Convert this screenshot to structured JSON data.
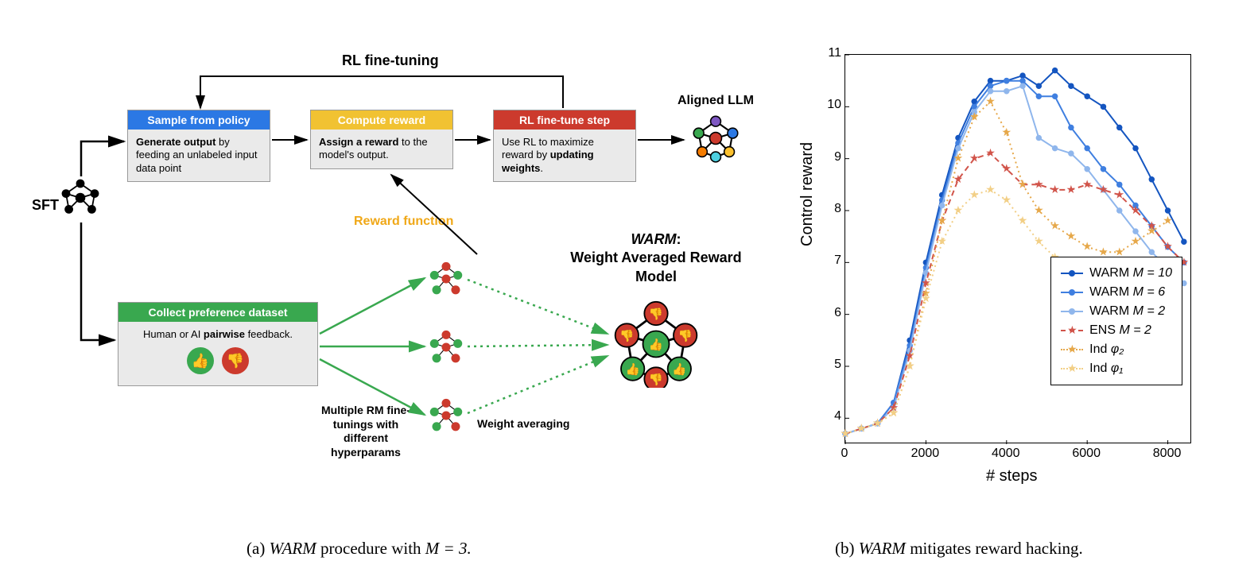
{
  "figure": {
    "caption_a_prefix": "(a) ",
    "caption_a_italic": "WARM",
    "caption_a_rest": " procedure with ",
    "caption_a_math": "M = 3.",
    "caption_b_prefix": "(b) ",
    "caption_b_italic": "WARM",
    "caption_b_rest": " mitigates reward hacking."
  },
  "diagram": {
    "rl_finetuning_label": "RL fine-tuning",
    "sft_label": "SFT",
    "aligned_llm_label": "Aligned LLM",
    "reward_function_label": "Reward function",
    "reward_function_color": "#f0a818",
    "multi_rm_label": "Multiple RM fine-tunings with different hyperparams",
    "weight_averaging_label": "Weight averaging",
    "warm_title_italic": "WARM",
    "warm_title_rest": ":\nWeight Averaged Reward Model",
    "colors": {
      "sample_head": "#2b78e4",
      "reward_head": "#f1c232",
      "step_head": "#cc3a2d",
      "pref_head": "#39a84f",
      "box_body_bg": "#eaeaea",
      "thumb_up": "#39a84f",
      "thumb_down": "#cc3a2d",
      "arrow_green": "#39a84f",
      "arrow_black": "#000000"
    },
    "boxes": {
      "sample": {
        "title": "Sample from policy",
        "body_bold": "Generate output",
        "body_rest": " by feeding an unlabeled input data point"
      },
      "reward": {
        "title": "Compute reward",
        "body_bold": "Assign a reward",
        "body_rest": " to the model's output."
      },
      "step": {
        "title": "RL fine-tune step",
        "body_pre": "Use RL to maximize reward by ",
        "body_bold": "updating weights",
        "body_post": "."
      },
      "pref": {
        "title": "Collect preference dataset",
        "body_pre": "Human or AI ",
        "body_bold": "pairwise",
        "body_post": " feedback."
      }
    }
  },
  "chart": {
    "type": "line",
    "xlabel": "# steps",
    "ylabel": "Control reward",
    "xlim": [
      0,
      8600
    ],
    "ylim": [
      3.5,
      11
    ],
    "xtick_positions": [
      0,
      2000,
      4000,
      6000,
      8000
    ],
    "xtick_labels": [
      "0",
      "2000",
      "4000",
      "6000",
      "8000"
    ],
    "ytick_positions": [
      4,
      5,
      6,
      7,
      8,
      9,
      10,
      11
    ],
    "ytick_labels": [
      "4",
      "5",
      "6",
      "7",
      "8",
      "9",
      "10",
      "11"
    ],
    "background_color": "#ffffff",
    "axis_color": "#000000",
    "label_fontsize": 20,
    "tick_fontsize": 16,
    "legend_fontsize": 16,
    "series": [
      {
        "name": "WARM M = 10",
        "label_prefix": "WARM ",
        "label_math": "M = 10",
        "color": "#1455c0",
        "linestyle": "solid",
        "linewidth": 2,
        "marker": "circle",
        "marker_size": 6,
        "x": [
          0,
          400,
          800,
          1200,
          1600,
          2000,
          2400,
          2800,
          3200,
          3600,
          4000,
          4400,
          4800,
          5200,
          5600,
          6000,
          6400,
          6800,
          7200,
          7600,
          8000,
          8400
        ],
        "y": [
          3.7,
          3.8,
          3.9,
          4.3,
          5.5,
          7.0,
          8.3,
          9.4,
          10.1,
          10.5,
          10.5,
          10.6,
          10.4,
          10.7,
          10.4,
          10.2,
          10.0,
          9.6,
          9.2,
          8.6,
          8.0,
          7.4
        ]
      },
      {
        "name": "WARM M = 6",
        "label_prefix": "WARM ",
        "label_math": "M = 6",
        "color": "#3f7fe0",
        "linestyle": "solid",
        "linewidth": 2,
        "marker": "circle",
        "marker_size": 6,
        "x": [
          0,
          400,
          800,
          1200,
          1600,
          2000,
          2400,
          2800,
          3200,
          3600,
          4000,
          4400,
          4800,
          5200,
          5600,
          6000,
          6400,
          6800,
          7200,
          7600,
          8000,
          8400
        ],
        "y": [
          3.7,
          3.8,
          3.9,
          4.3,
          5.4,
          6.9,
          8.2,
          9.3,
          10.0,
          10.4,
          10.5,
          10.5,
          10.2,
          10.2,
          9.6,
          9.2,
          8.8,
          8.5,
          8.1,
          7.7,
          7.3,
          7.0
        ]
      },
      {
        "name": "WARM M = 2",
        "label_prefix": "WARM ",
        "label_math": "M = 2",
        "color": "#8fb6ec",
        "linestyle": "solid",
        "linewidth": 2,
        "marker": "circle",
        "marker_size": 6,
        "x": [
          0,
          400,
          800,
          1200,
          1600,
          2000,
          2400,
          2800,
          3200,
          3600,
          4000,
          4400,
          4800,
          5200,
          5600,
          6000,
          6400,
          6800,
          7200,
          7600,
          8000,
          8400
        ],
        "y": [
          3.7,
          3.8,
          3.9,
          4.2,
          5.3,
          6.8,
          8.1,
          9.2,
          9.9,
          10.3,
          10.3,
          10.4,
          9.4,
          9.2,
          9.1,
          8.8,
          8.4,
          8.0,
          7.6,
          7.2,
          6.9,
          6.6
        ]
      },
      {
        "name": "ENS M = 2",
        "label_prefix": "ENS ",
        "label_math": "M = 2",
        "color": "#d1544a",
        "linestyle": "dashed",
        "linewidth": 2,
        "marker": "star",
        "marker_size": 7,
        "x": [
          0,
          400,
          800,
          1200,
          1600,
          2000,
          2400,
          2800,
          3200,
          3600,
          4000,
          4400,
          4800,
          5200,
          5600,
          6000,
          6400,
          6800,
          7200,
          7600,
          8000,
          8400
        ],
        "y": [
          3.7,
          3.8,
          3.9,
          4.2,
          5.2,
          6.6,
          7.8,
          8.6,
          9.0,
          9.1,
          8.8,
          8.5,
          8.5,
          8.4,
          8.4,
          8.5,
          8.4,
          8.3,
          8.0,
          7.7,
          7.3,
          7.0
        ]
      },
      {
        "name": "Ind phi2",
        "label_prefix": "Ind ",
        "label_math": "φ₂",
        "color": "#e6a84a",
        "linestyle": "dotted",
        "linewidth": 2,
        "marker": "star",
        "marker_size": 7,
        "x": [
          0,
          400,
          800,
          1200,
          1600,
          2000,
          2400,
          2800,
          3200,
          3600,
          4000,
          4400,
          4800,
          5200,
          5600,
          6000,
          6400,
          6800,
          7200,
          7600,
          8000
        ],
        "y": [
          3.7,
          3.8,
          3.9,
          4.1,
          5.0,
          6.4,
          7.8,
          9.0,
          9.8,
          10.1,
          9.5,
          8.5,
          8.0,
          7.7,
          7.5,
          7.3,
          7.2,
          7.2,
          7.4,
          7.6,
          7.8
        ]
      },
      {
        "name": "Ind phi1",
        "label_prefix": "Ind ",
        "label_math": "φ₁",
        "color": "#f2cf86",
        "linestyle": "dotted",
        "linewidth": 2,
        "marker": "star",
        "marker_size": 7,
        "x": [
          0,
          400,
          800,
          1200,
          1600,
          2000,
          2400,
          2800,
          3200,
          3600,
          4000,
          4400,
          4800,
          5200,
          5600,
          6000,
          6400,
          6800
        ],
        "y": [
          3.7,
          3.8,
          3.9,
          4.1,
          5.0,
          6.3,
          7.4,
          8.0,
          8.3,
          8.4,
          8.2,
          7.8,
          7.4,
          7.1,
          6.9,
          6.8,
          6.7,
          6.7
        ]
      }
    ]
  }
}
